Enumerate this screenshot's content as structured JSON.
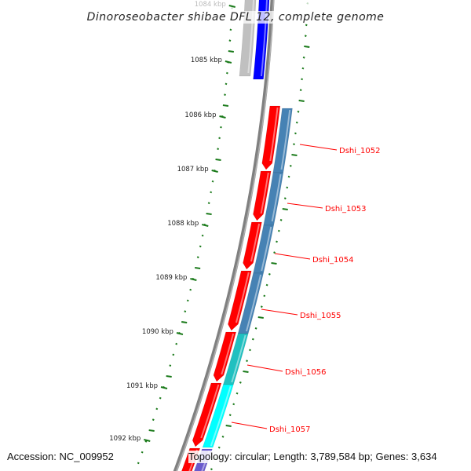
{
  "title": "Dinoroseobacter shibae DFL 12, complete genome",
  "accession": "Accession: NC_009952",
  "summary": "Topology: circular; Length: 3,789,584 bp; Genes: 3,634",
  "kbp_labels": [
    "1084 kbp",
    "1085 kbp",
    "1086 kbp",
    "1087 kbp",
    "1088 kbp",
    "1089 kbp",
    "1090 kbp",
    "1091 kbp",
    "1092 kbp"
  ],
  "genes": [
    {
      "label": "Dshi_1052",
      "color": "#4682b4"
    },
    {
      "label": "Dshi_1053",
      "color": "#4682b4"
    },
    {
      "label": "Dshi_1054",
      "color": "#4682b4"
    },
    {
      "label": "Dshi_1055",
      "color": "#4682b4"
    },
    {
      "label": "Dshi_1056",
      "color": "#20c0c0"
    },
    {
      "label": "Dshi_1057",
      "color": "#00ffff"
    }
  ],
  "colors": {
    "cds": "#ff0000",
    "backbone": "#808080",
    "tick": "#1a7a1a",
    "label": "#ff0000",
    "reverse_gene": "#0000ff",
    "other": "#c0c0c0",
    "next_gene": "#6a5acd"
  }
}
